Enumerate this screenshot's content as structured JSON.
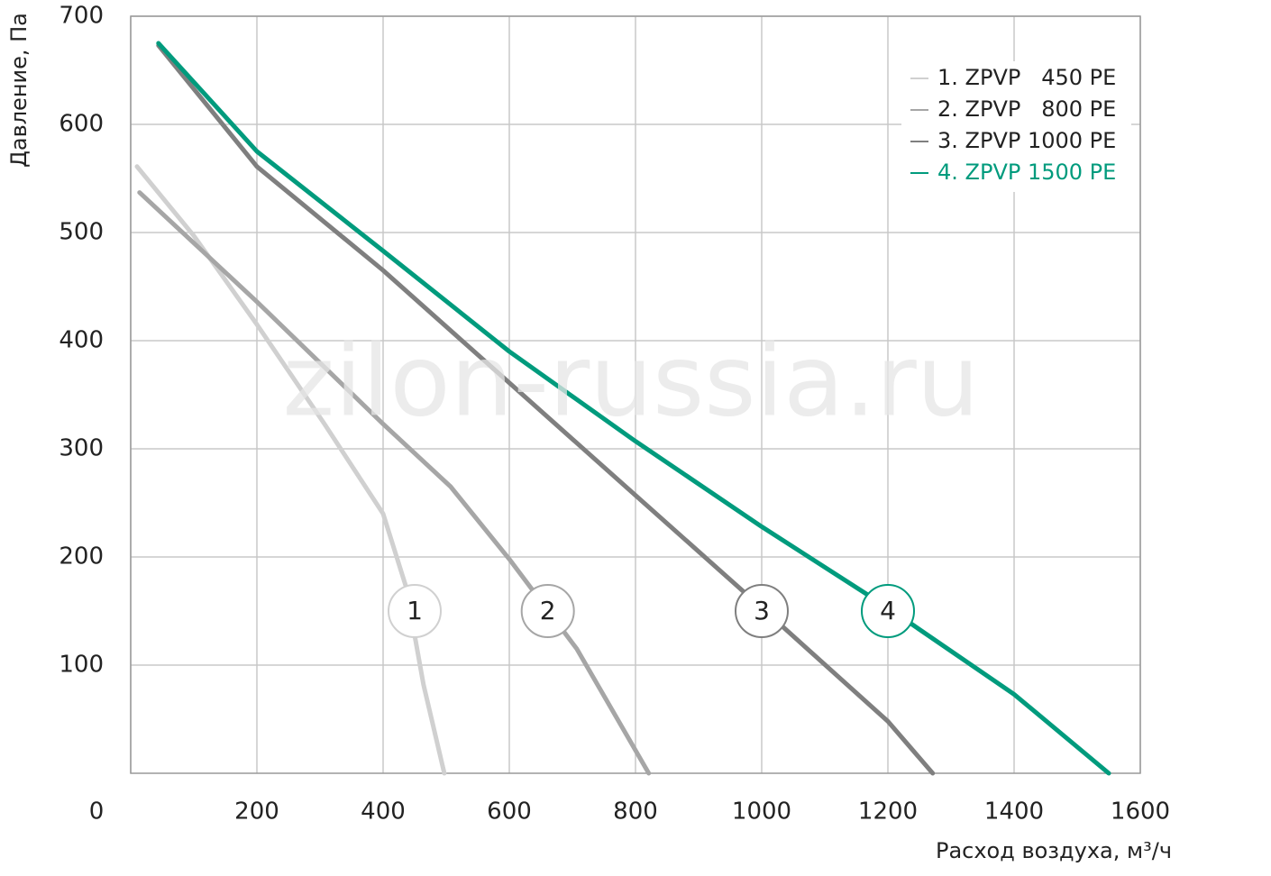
{
  "chart_data": {
    "type": "line",
    "x_label": "Расход воздуха, м³/ч",
    "y_label": "Давление, Па",
    "watermark": "zilon-russia.ru",
    "xlim": [
      0,
      1600
    ],
    "xticks": [
      0,
      200,
      400,
      600,
      800,
      1000,
      1200,
      1400,
      1600
    ],
    "ylim": [
      0,
      700
    ],
    "yticks": [
      100,
      200,
      300,
      400,
      500,
      600,
      700
    ],
    "grid": true,
    "legend": "upper right",
    "series": [
      {
        "name": "1. ZPVP   450 PE",
        "color": "#d0d0d0",
        "x": [
          10,
          100,
          200,
          307,
          400,
          436,
          464,
          497
        ],
        "values": [
          561,
          497,
          415,
          323,
          240,
          173,
          82,
          0
        ]
      },
      {
        "name": "2. ZPVP   800 PE",
        "color": "#a6a6a6",
        "x": [
          14,
          200,
          400,
          507,
          600,
          707,
          821
        ],
        "values": [
          537,
          436,
          323,
          265,
          198,
          115,
          0
        ]
      },
      {
        "name": "3. ZPVP 1000 PE",
        "color": "#7f7f7f",
        "x": [
          44,
          200,
          400,
          600,
          800,
          1000,
          1200,
          1271
        ],
        "values": [
          673,
          561,
          465,
          361,
          257,
          153,
          48,
          0
        ]
      },
      {
        "name": "4. ZPVP 1500 PE",
        "color": "#009b7d",
        "x": [
          44,
          200,
          400,
          600,
          800,
          1000,
          1200,
          1400,
          1550
        ],
        "values": [
          675,
          575,
          483,
          390,
          307,
          228,
          153,
          73,
          0
        ]
      }
    ],
    "markers": [
      {
        "label": "1",
        "x": 450,
        "y": 150
      },
      {
        "label": "2",
        "x": 661,
        "y": 150
      },
      {
        "label": "3",
        "x": 1000,
        "y": 150
      },
      {
        "label": "4",
        "x": 1200,
        "y": 150
      }
    ]
  }
}
